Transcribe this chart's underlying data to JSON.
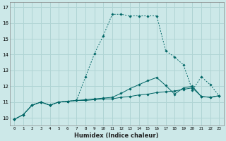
{
  "title": "",
  "xlabel": "Humidex (Indice chaleur)",
  "bg_color": "#cce8e8",
  "grid_color": "#b0d4d4",
  "line_color": "#006666",
  "xlim": [
    -0.5,
    23.5
  ],
  "ylim": [
    9.5,
    17.3
  ],
  "xticks": [
    0,
    1,
    2,
    3,
    4,
    5,
    6,
    7,
    8,
    9,
    10,
    11,
    12,
    13,
    14,
    15,
    16,
    17,
    18,
    19,
    20,
    21,
    22,
    23
  ],
  "yticks": [
    10,
    11,
    12,
    13,
    14,
    15,
    16,
    17
  ],
  "series": [
    {
      "x": [
        0,
        1,
        2,
        3,
        4,
        5,
        6,
        7,
        8,
        9,
        10,
        11,
        12,
        13,
        14,
        15,
        16,
        17,
        18,
        19,
        20,
        21,
        22,
        23
      ],
      "y": [
        9.9,
        10.2,
        10.8,
        11.0,
        10.8,
        11.0,
        11.05,
        11.1,
        11.1,
        11.15,
        11.2,
        11.2,
        11.3,
        11.35,
        11.45,
        11.5,
        11.6,
        11.65,
        11.7,
        11.8,
        11.9,
        11.35,
        11.3,
        11.4
      ],
      "linestyle": "-",
      "has_markers": true
    },
    {
      "x": [
        0,
        1,
        2,
        3,
        4,
        5,
        6,
        7,
        8,
        9,
        10,
        11,
        12,
        13,
        14,
        15,
        16,
        17,
        18,
        19,
        20,
        21,
        22,
        23
      ],
      "y": [
        9.9,
        10.2,
        10.8,
        11.0,
        10.8,
        11.0,
        11.05,
        11.1,
        12.6,
        14.05,
        15.2,
        16.55,
        16.55,
        16.45,
        16.45,
        16.45,
        16.45,
        14.25,
        13.85,
        13.35,
        11.75,
        12.6,
        12.1,
        11.4
      ],
      "linestyle": "--",
      "has_markers": true
    },
    {
      "x": [
        0,
        1,
        2,
        3,
        4,
        5,
        6,
        7,
        8,
        9,
        10,
        11,
        12,
        13,
        14,
        15,
        16,
        17,
        18,
        19,
        20,
        21,
        22,
        23
      ],
      "y": [
        9.9,
        10.2,
        10.8,
        11.0,
        10.8,
        11.0,
        11.05,
        11.1,
        11.15,
        11.2,
        11.25,
        11.3,
        11.55,
        11.85,
        12.1,
        12.35,
        12.55,
        12.05,
        11.5,
        11.9,
        12.0,
        11.35,
        11.3,
        11.4
      ],
      "linestyle": "-",
      "has_markers": true
    }
  ]
}
